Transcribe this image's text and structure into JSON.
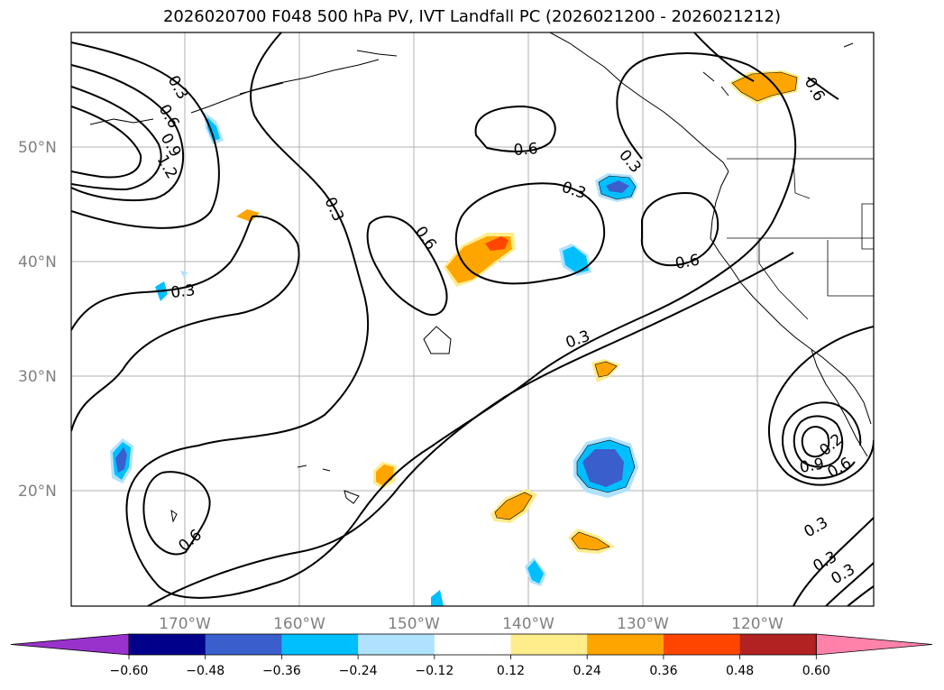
{
  "title": "2026020700 F048 500 hPa PV, IVT Landfall PC (2026021200 - 2026021212)",
  "map": {
    "lat_labels": [
      "50°N",
      "40°N",
      "30°N",
      "20°N"
    ],
    "lon_labels": [
      "170°W",
      "160°W",
      "150°W",
      "140°W",
      "130°W",
      "120°W"
    ],
    "contour_labels": [
      "0.3",
      "0.6",
      "0.9",
      "1.2",
      "0.3",
      "0.3",
      "0.3",
      "0.6",
      "0.6",
      "0.3",
      "0.3",
      "0.6",
      "0.6",
      "0.3",
      "0.6",
      "0.3",
      "0.6",
      "0.9",
      "0.3",
      "0.3",
      "0.3",
      "0.6",
      "0.2"
    ]
  },
  "colorbar": {
    "ticks": [
      "−0.60",
      "−0.48",
      "−0.36",
      "−0.24",
      "−0.12",
      "0.12",
      "0.24",
      "0.36",
      "0.48",
      "0.60"
    ],
    "colors": [
      "#9932cc",
      "#00008b",
      "#3a5fcd",
      "#00bfff",
      "#b0e2ff",
      "#ffffff",
      "#ffec8b",
      "#ffa500",
      "#ff4500",
      "#b22222",
      "#ff82ab"
    ]
  }
}
